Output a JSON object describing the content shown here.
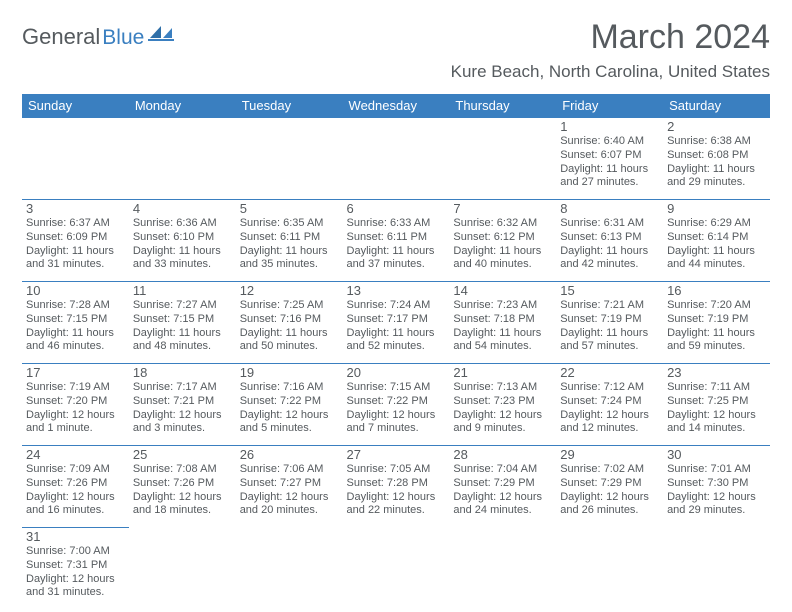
{
  "brand": {
    "general": "General",
    "blue": "Blue"
  },
  "title": "March 2024",
  "location": "Kure Beach, North Carolina, United States",
  "colors": {
    "accent": "#3a7fc0",
    "text": "#555a5e",
    "bg": "#ffffff"
  },
  "weekday_labels": [
    "Sunday",
    "Monday",
    "Tuesday",
    "Wednesday",
    "Thursday",
    "Friday",
    "Saturday"
  ],
  "calendar": {
    "type": "table",
    "start_weekday_index": 5,
    "days": [
      {
        "n": 1,
        "sunrise": "6:40 AM",
        "sunset": "6:07 PM",
        "day_h": 11,
        "day_m": 27
      },
      {
        "n": 2,
        "sunrise": "6:38 AM",
        "sunset": "6:08 PM",
        "day_h": 11,
        "day_m": 29
      },
      {
        "n": 3,
        "sunrise": "6:37 AM",
        "sunset": "6:09 PM",
        "day_h": 11,
        "day_m": 31
      },
      {
        "n": 4,
        "sunrise": "6:36 AM",
        "sunset": "6:10 PM",
        "day_h": 11,
        "day_m": 33
      },
      {
        "n": 5,
        "sunrise": "6:35 AM",
        "sunset": "6:11 PM",
        "day_h": 11,
        "day_m": 35
      },
      {
        "n": 6,
        "sunrise": "6:33 AM",
        "sunset": "6:11 PM",
        "day_h": 11,
        "day_m": 37
      },
      {
        "n": 7,
        "sunrise": "6:32 AM",
        "sunset": "6:12 PM",
        "day_h": 11,
        "day_m": 40
      },
      {
        "n": 8,
        "sunrise": "6:31 AM",
        "sunset": "6:13 PM",
        "day_h": 11,
        "day_m": 42
      },
      {
        "n": 9,
        "sunrise": "6:29 AM",
        "sunset": "6:14 PM",
        "day_h": 11,
        "day_m": 44
      },
      {
        "n": 10,
        "sunrise": "7:28 AM",
        "sunset": "7:15 PM",
        "day_h": 11,
        "day_m": 46
      },
      {
        "n": 11,
        "sunrise": "7:27 AM",
        "sunset": "7:15 PM",
        "day_h": 11,
        "day_m": 48
      },
      {
        "n": 12,
        "sunrise": "7:25 AM",
        "sunset": "7:16 PM",
        "day_h": 11,
        "day_m": 50
      },
      {
        "n": 13,
        "sunrise": "7:24 AM",
        "sunset": "7:17 PM",
        "day_h": 11,
        "day_m": 52
      },
      {
        "n": 14,
        "sunrise": "7:23 AM",
        "sunset": "7:18 PM",
        "day_h": 11,
        "day_m": 54
      },
      {
        "n": 15,
        "sunrise": "7:21 AM",
        "sunset": "7:19 PM",
        "day_h": 11,
        "day_m": 57
      },
      {
        "n": 16,
        "sunrise": "7:20 AM",
        "sunset": "7:19 PM",
        "day_h": 11,
        "day_m": 59
      },
      {
        "n": 17,
        "sunrise": "7:19 AM",
        "sunset": "7:20 PM",
        "day_h": 12,
        "day_m": 1
      },
      {
        "n": 18,
        "sunrise": "7:17 AM",
        "sunset": "7:21 PM",
        "day_h": 12,
        "day_m": 3
      },
      {
        "n": 19,
        "sunrise": "7:16 AM",
        "sunset": "7:22 PM",
        "day_h": 12,
        "day_m": 5
      },
      {
        "n": 20,
        "sunrise": "7:15 AM",
        "sunset": "7:22 PM",
        "day_h": 12,
        "day_m": 7
      },
      {
        "n": 21,
        "sunrise": "7:13 AM",
        "sunset": "7:23 PM",
        "day_h": 12,
        "day_m": 9
      },
      {
        "n": 22,
        "sunrise": "7:12 AM",
        "sunset": "7:24 PM",
        "day_h": 12,
        "day_m": 12
      },
      {
        "n": 23,
        "sunrise": "7:11 AM",
        "sunset": "7:25 PM",
        "day_h": 12,
        "day_m": 14
      },
      {
        "n": 24,
        "sunrise": "7:09 AM",
        "sunset": "7:26 PM",
        "day_h": 12,
        "day_m": 16
      },
      {
        "n": 25,
        "sunrise": "7:08 AM",
        "sunset": "7:26 PM",
        "day_h": 12,
        "day_m": 18
      },
      {
        "n": 26,
        "sunrise": "7:06 AM",
        "sunset": "7:27 PM",
        "day_h": 12,
        "day_m": 20
      },
      {
        "n": 27,
        "sunrise": "7:05 AM",
        "sunset": "7:28 PM",
        "day_h": 12,
        "day_m": 22
      },
      {
        "n": 28,
        "sunrise": "7:04 AM",
        "sunset": "7:29 PM",
        "day_h": 12,
        "day_m": 24
      },
      {
        "n": 29,
        "sunrise": "7:02 AM",
        "sunset": "7:29 PM",
        "day_h": 12,
        "day_m": 26
      },
      {
        "n": 30,
        "sunrise": "7:01 AM",
        "sunset": "7:30 PM",
        "day_h": 12,
        "day_m": 29
      },
      {
        "n": 31,
        "sunrise": "7:00 AM",
        "sunset": "7:31 PM",
        "day_h": 12,
        "day_m": 31
      }
    ]
  },
  "labels": {
    "sunrise_prefix": "Sunrise: ",
    "sunset_prefix": "Sunset: ",
    "daylight_prefix": "Daylight: ",
    "hours_word": " hours",
    "and_word": "and ",
    "minute_singular": " minute.",
    "minutes_plural": " minutes."
  }
}
